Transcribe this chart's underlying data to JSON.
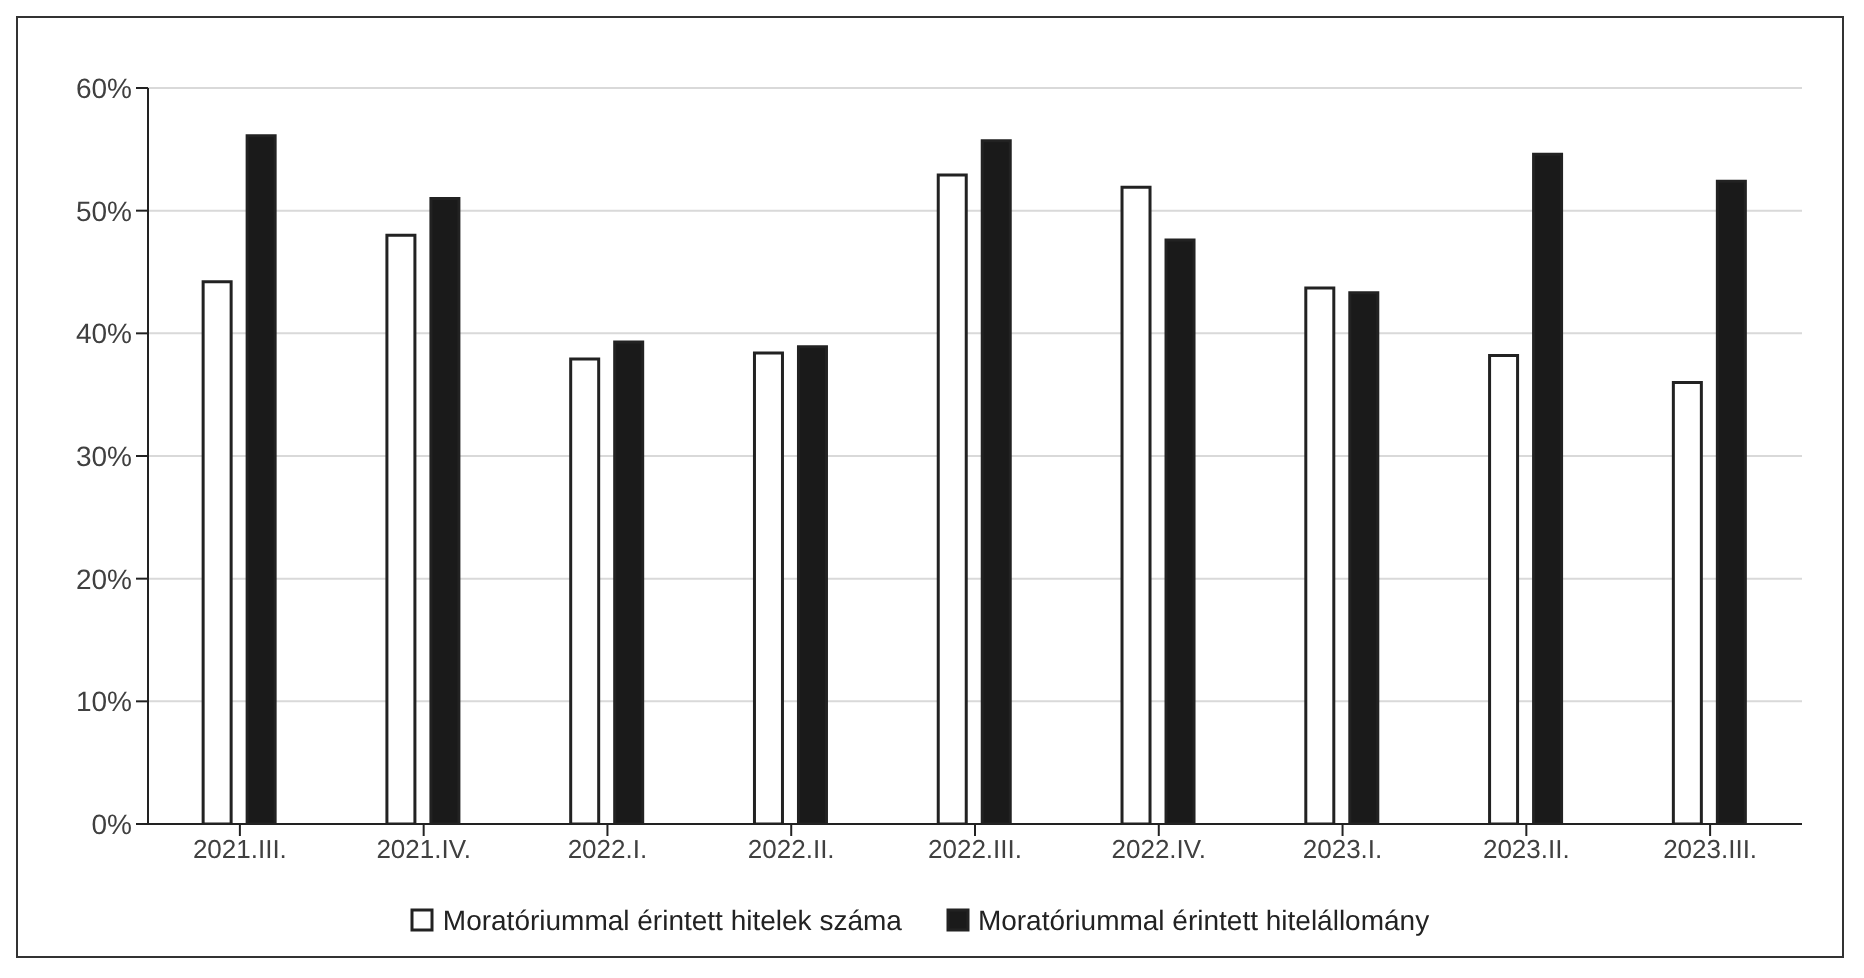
{
  "chart_data": {
    "type": "bar",
    "categories": [
      "2021.III.",
      "2021.IV.",
      "2022.I.",
      "2022.II.",
      "2022.III.",
      "2022.IV.",
      "2023.I.",
      "2023.II.",
      "2023.III."
    ],
    "series": [
      {
        "name": "Moratóriummal érintett hitelek száma",
        "color": "#ffffff",
        "values": [
          44.2,
          48.0,
          37.9,
          38.4,
          52.9,
          51.9,
          43.7,
          38.2,
          36.0
        ]
      },
      {
        "name": "Moratóriummal érintett hitelállomány",
        "color": "#1a1a1a",
        "values": [
          56.1,
          51.0,
          39.3,
          38.9,
          55.7,
          47.6,
          43.3,
          54.6,
          52.4
        ]
      }
    ],
    "ylim": [
      0,
      60
    ],
    "yticks": [
      {
        "value": 0,
        "label": "0%"
      },
      {
        "value": 10,
        "label": "10%"
      },
      {
        "value": 20,
        "label": "20%"
      },
      {
        "value": 30,
        "label": "30%"
      },
      {
        "value": 40,
        "label": "40%"
      },
      {
        "value": 50,
        "label": "50%"
      },
      {
        "value": 60,
        "label": "60%"
      }
    ],
    "grid": "y",
    "legend": "bottom"
  }
}
